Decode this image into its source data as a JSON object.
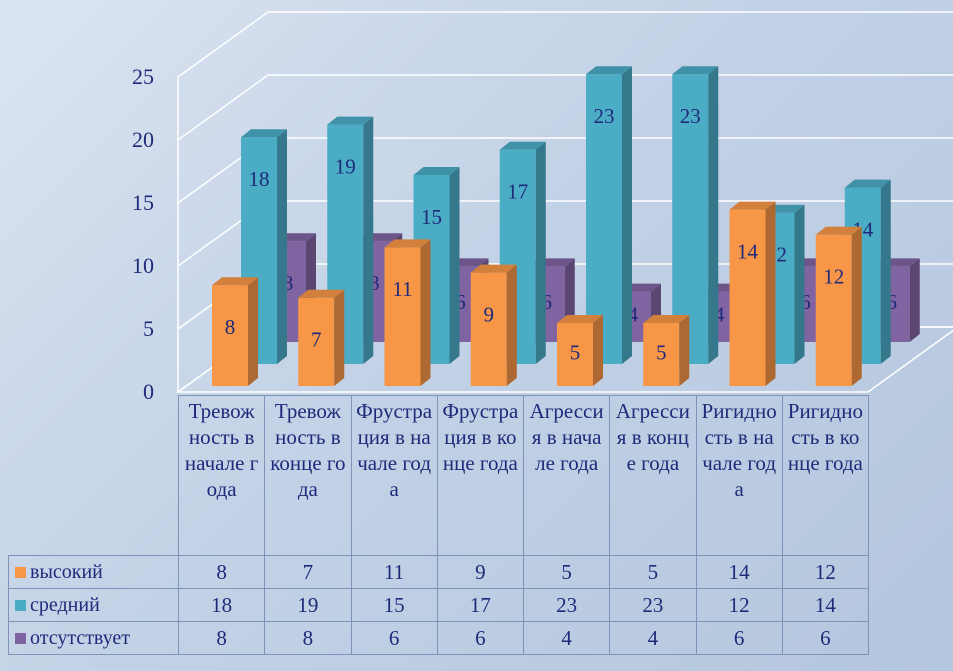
{
  "chart_data": {
    "type": "bar3d",
    "categories": [
      "Тревожность в начале года",
      "Тревожность в конце года",
      "Фрустрация в начале года",
      "Фрустрация в конце года",
      "Агрессия в начале года",
      "Агрессия в конце года",
      "Ригидность в начале года",
      "Ригидность в конце года"
    ],
    "series": [
      {
        "name": "высокий",
        "color": "#f79646",
        "values": [
          8,
          7,
          11,
          9,
          5,
          5,
          14,
          12
        ]
      },
      {
        "name": "средний",
        "color": "#4bacc6",
        "values": [
          18,
          19,
          15,
          17,
          23,
          23,
          12,
          14
        ]
      },
      {
        "name": "отсутствует",
        "color": "#8064a2",
        "values": [
          8,
          8,
          6,
          6,
          4,
          4,
          6,
          6
        ]
      }
    ],
    "ylim": [
      0,
      25
    ],
    "yticks": [
      0,
      5,
      10,
      15,
      20,
      25
    ],
    "grid": true
  }
}
